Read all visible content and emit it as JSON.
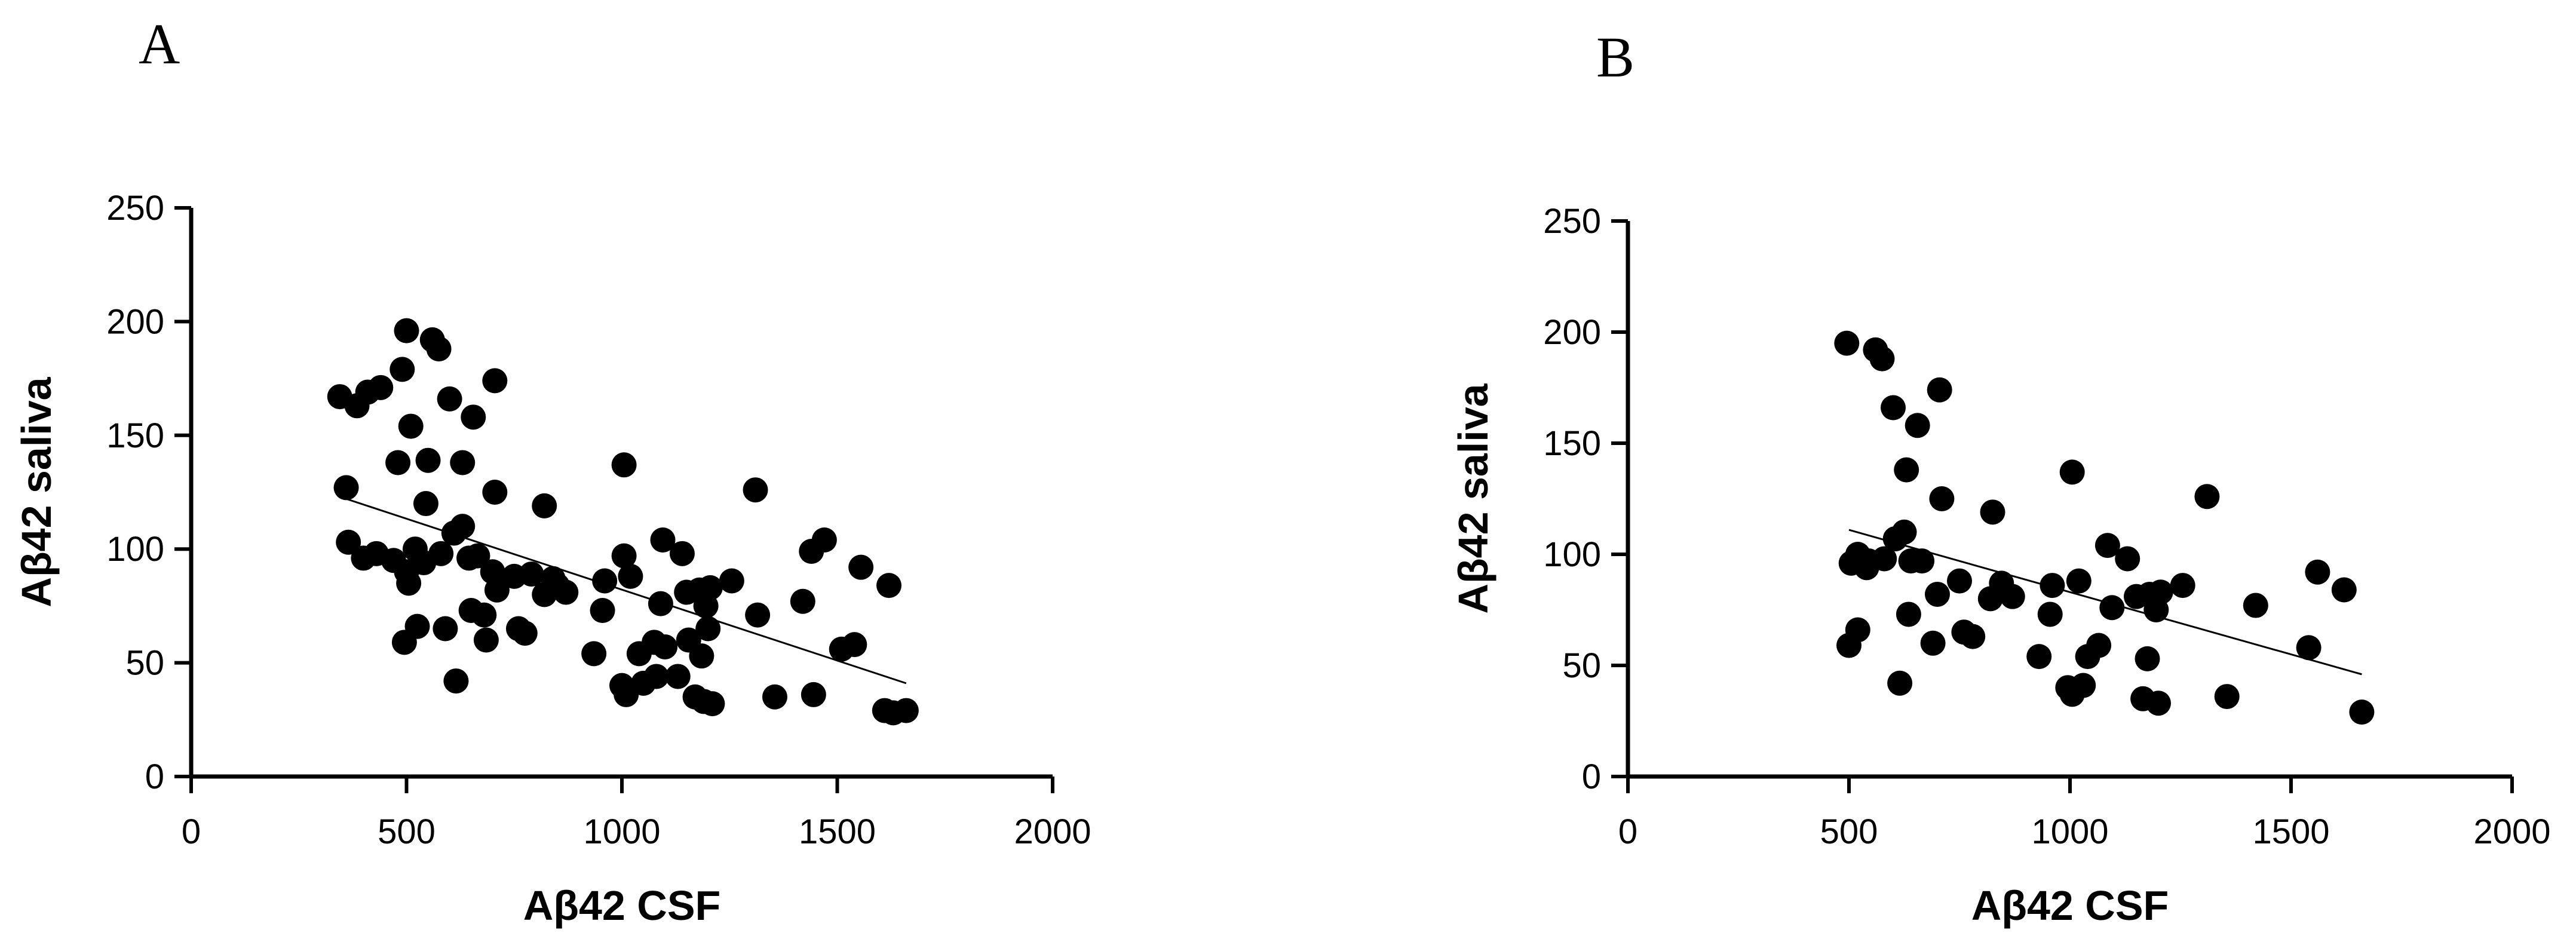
{
  "chart_data": [
    {
      "panel_label": "A",
      "type": "scatter",
      "title": "",
      "xlabel": "Aβ42 CSF",
      "ylabel": "Aβ42 saliva",
      "xlim": [
        0,
        2000
      ],
      "ylim": [
        0,
        250
      ],
      "xticks": [
        0,
        500,
        1000,
        1500,
        2000
      ],
      "yticks": [
        0,
        50,
        100,
        150,
        200,
        250
      ],
      "xtick_labels": [
        "0",
        "500",
        "1000",
        "1500",
        "2000"
      ],
      "ytick_labels": [
        "0",
        "50",
        "100",
        "150",
        "200",
        "250"
      ],
      "marker_color": "#000000",
      "grid": false,
      "trendline": {
        "x": [
          345,
          1660
        ],
        "y": [
          123,
          41
        ]
      },
      "points": [
        {
          "x": 345,
          "y": 167
        },
        {
          "x": 385,
          "y": 163
        },
        {
          "x": 410,
          "y": 169
        },
        {
          "x": 440,
          "y": 171
        },
        {
          "x": 360,
          "y": 127
        },
        {
          "x": 365,
          "y": 103
        },
        {
          "x": 400,
          "y": 96
        },
        {
          "x": 430,
          "y": 98
        },
        {
          "x": 470,
          "y": 95
        },
        {
          "x": 480,
          "y": 138
        },
        {
          "x": 490,
          "y": 179
        },
        {
          "x": 500,
          "y": 196
        },
        {
          "x": 510,
          "y": 154
        },
        {
          "x": 500,
          "y": 90
        },
        {
          "x": 505,
          "y": 85
        },
        {
          "x": 520,
          "y": 100
        },
        {
          "x": 540,
          "y": 94
        },
        {
          "x": 545,
          "y": 120
        },
        {
          "x": 550,
          "y": 139
        },
        {
          "x": 560,
          "y": 192
        },
        {
          "x": 575,
          "y": 188
        },
        {
          "x": 580,
          "y": 98
        },
        {
          "x": 590,
          "y": 65
        },
        {
          "x": 495,
          "y": 59
        },
        {
          "x": 525,
          "y": 66
        },
        {
          "x": 600,
          "y": 166
        },
        {
          "x": 610,
          "y": 107
        },
        {
          "x": 615,
          "y": 42
        },
        {
          "x": 630,
          "y": 110
        },
        {
          "x": 630,
          "y": 138
        },
        {
          "x": 645,
          "y": 96
        },
        {
          "x": 650,
          "y": 73
        },
        {
          "x": 655,
          "y": 158
        },
        {
          "x": 665,
          "y": 97
        },
        {
          "x": 680,
          "y": 71
        },
        {
          "x": 685,
          "y": 60
        },
        {
          "x": 700,
          "y": 90
        },
        {
          "x": 705,
          "y": 125
        },
        {
          "x": 705,
          "y": 174
        },
        {
          "x": 710,
          "y": 82
        },
        {
          "x": 750,
          "y": 88
        },
        {
          "x": 760,
          "y": 65
        },
        {
          "x": 775,
          "y": 63
        },
        {
          "x": 790,
          "y": 89
        },
        {
          "x": 820,
          "y": 80
        },
        {
          "x": 820,
          "y": 119
        },
        {
          "x": 840,
          "y": 87
        },
        {
          "x": 850,
          "y": 84
        },
        {
          "x": 870,
          "y": 81
        },
        {
          "x": 935,
          "y": 54
        },
        {
          "x": 955,
          "y": 73
        },
        {
          "x": 960,
          "y": 86
        },
        {
          "x": 1000,
          "y": 40
        },
        {
          "x": 1005,
          "y": 97
        },
        {
          "x": 1005,
          "y": 137
        },
        {
          "x": 1010,
          "y": 36
        },
        {
          "x": 1020,
          "y": 88
        },
        {
          "x": 1040,
          "y": 54
        },
        {
          "x": 1050,
          "y": 41
        },
        {
          "x": 1075,
          "y": 59
        },
        {
          "x": 1080,
          "y": 44
        },
        {
          "x": 1090,
          "y": 76
        },
        {
          "x": 1095,
          "y": 104
        },
        {
          "x": 1100,
          "y": 57
        },
        {
          "x": 1130,
          "y": 44
        },
        {
          "x": 1140,
          "y": 98
        },
        {
          "x": 1150,
          "y": 81
        },
        {
          "x": 1155,
          "y": 60
        },
        {
          "x": 1170,
          "y": 35
        },
        {
          "x": 1180,
          "y": 82
        },
        {
          "x": 1185,
          "y": 53
        },
        {
          "x": 1190,
          "y": 33
        },
        {
          "x": 1195,
          "y": 75
        },
        {
          "x": 1200,
          "y": 65
        },
        {
          "x": 1205,
          "y": 83
        },
        {
          "x": 1210,
          "y": 32
        },
        {
          "x": 1255,
          "y": 86
        },
        {
          "x": 1310,
          "y": 126
        },
        {
          "x": 1315,
          "y": 71
        },
        {
          "x": 1355,
          "y": 35
        },
        {
          "x": 1420,
          "y": 77
        },
        {
          "x": 1440,
          "y": 99
        },
        {
          "x": 1445,
          "y": 36
        },
        {
          "x": 1470,
          "y": 104
        },
        {
          "x": 1510,
          "y": 56
        },
        {
          "x": 1540,
          "y": 58
        },
        {
          "x": 1555,
          "y": 92
        },
        {
          "x": 1610,
          "y": 29
        },
        {
          "x": 1620,
          "y": 84
        },
        {
          "x": 1630,
          "y": 28
        },
        {
          "x": 1660,
          "y": 29
        }
      ]
    },
    {
      "panel_label": "B",
      "type": "scatter",
      "title": "",
      "xlabel": "Aβ42 CSF",
      "ylabel": "Aβ42 saliva",
      "xlim": [
        0,
        2000
      ],
      "ylim": [
        0,
        250
      ],
      "xticks": [
        0,
        500,
        1000,
        1500,
        2000
      ],
      "yticks": [
        0,
        50,
        100,
        150,
        200,
        250
      ],
      "xtick_labels": [
        "0",
        "500",
        "1000",
        "1500",
        "2000"
      ],
      "ytick_labels": [
        "0",
        "50",
        "100",
        "150",
        "200",
        "250"
      ],
      "marker_color": "#000000",
      "grid": false,
      "trendline": {
        "x": [
          500,
          1660
        ],
        "y": [
          111,
          46
        ]
      },
      "points": [
        {
          "x": 495,
          "y": 195
        },
        {
          "x": 500,
          "y": 59
        },
        {
          "x": 505,
          "y": 96
        },
        {
          "x": 520,
          "y": 100
        },
        {
          "x": 520,
          "y": 66
        },
        {
          "x": 540,
          "y": 94
        },
        {
          "x": 545,
          "y": 97
        },
        {
          "x": 560,
          "y": 192
        },
        {
          "x": 575,
          "y": 188
        },
        {
          "x": 580,
          "y": 98
        },
        {
          "x": 600,
          "y": 166
        },
        {
          "x": 605,
          "y": 107
        },
        {
          "x": 615,
          "y": 42
        },
        {
          "x": 625,
          "y": 110
        },
        {
          "x": 630,
          "y": 138
        },
        {
          "x": 635,
          "y": 73
        },
        {
          "x": 640,
          "y": 97
        },
        {
          "x": 655,
          "y": 158
        },
        {
          "x": 665,
          "y": 97
        },
        {
          "x": 690,
          "y": 60
        },
        {
          "x": 700,
          "y": 82
        },
        {
          "x": 705,
          "y": 174
        },
        {
          "x": 710,
          "y": 125
        },
        {
          "x": 750,
          "y": 88
        },
        {
          "x": 760,
          "y": 65
        },
        {
          "x": 780,
          "y": 63
        },
        {
          "x": 820,
          "y": 80
        },
        {
          "x": 825,
          "y": 119
        },
        {
          "x": 845,
          "y": 87
        },
        {
          "x": 870,
          "y": 81
        },
        {
          "x": 930,
          "y": 54
        },
        {
          "x": 955,
          "y": 73
        },
        {
          "x": 960,
          "y": 86
        },
        {
          "x": 995,
          "y": 40
        },
        {
          "x": 1005,
          "y": 37
        },
        {
          "x": 1005,
          "y": 137
        },
        {
          "x": 1020,
          "y": 88
        },
        {
          "x": 1030,
          "y": 41
        },
        {
          "x": 1040,
          "y": 54
        },
        {
          "x": 1065,
          "y": 59
        },
        {
          "x": 1085,
          "y": 104
        },
        {
          "x": 1095,
          "y": 76
        },
        {
          "x": 1130,
          "y": 98
        },
        {
          "x": 1150,
          "y": 81
        },
        {
          "x": 1165,
          "y": 35
        },
        {
          "x": 1175,
          "y": 53
        },
        {
          "x": 1180,
          "y": 82
        },
        {
          "x": 1195,
          "y": 75
        },
        {
          "x": 1200,
          "y": 33
        },
        {
          "x": 1205,
          "y": 83
        },
        {
          "x": 1255,
          "y": 86
        },
        {
          "x": 1310,
          "y": 126
        },
        {
          "x": 1355,
          "y": 36
        },
        {
          "x": 1420,
          "y": 77
        },
        {
          "x": 1540,
          "y": 58
        },
        {
          "x": 1560,
          "y": 92
        },
        {
          "x": 1620,
          "y": 84
        },
        {
          "x": 1660,
          "y": 29
        }
      ]
    }
  ]
}
